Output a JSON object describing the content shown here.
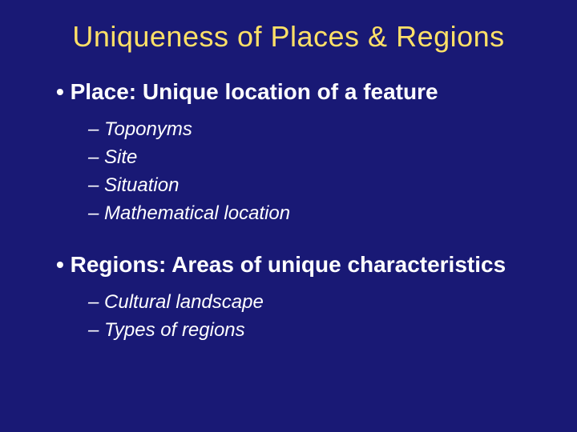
{
  "slide": {
    "title": "Uniqueness of Places & Regions",
    "bullets": [
      {
        "text": "Place: Unique location of a feature",
        "subs": [
          "Toponyms",
          "Site",
          "Situation",
          "Mathematical location"
        ]
      },
      {
        "text": "Regions: Areas of unique characteristics",
        "subs": [
          "Cultural landscape",
          "Types of regions"
        ]
      }
    ]
  },
  "colors": {
    "background": "#191975",
    "title": "#ffe067",
    "text": "#ffffff"
  },
  "typography": {
    "title_fontsize": 36,
    "main_fontsize": 28,
    "sub_fontsize": 24
  }
}
